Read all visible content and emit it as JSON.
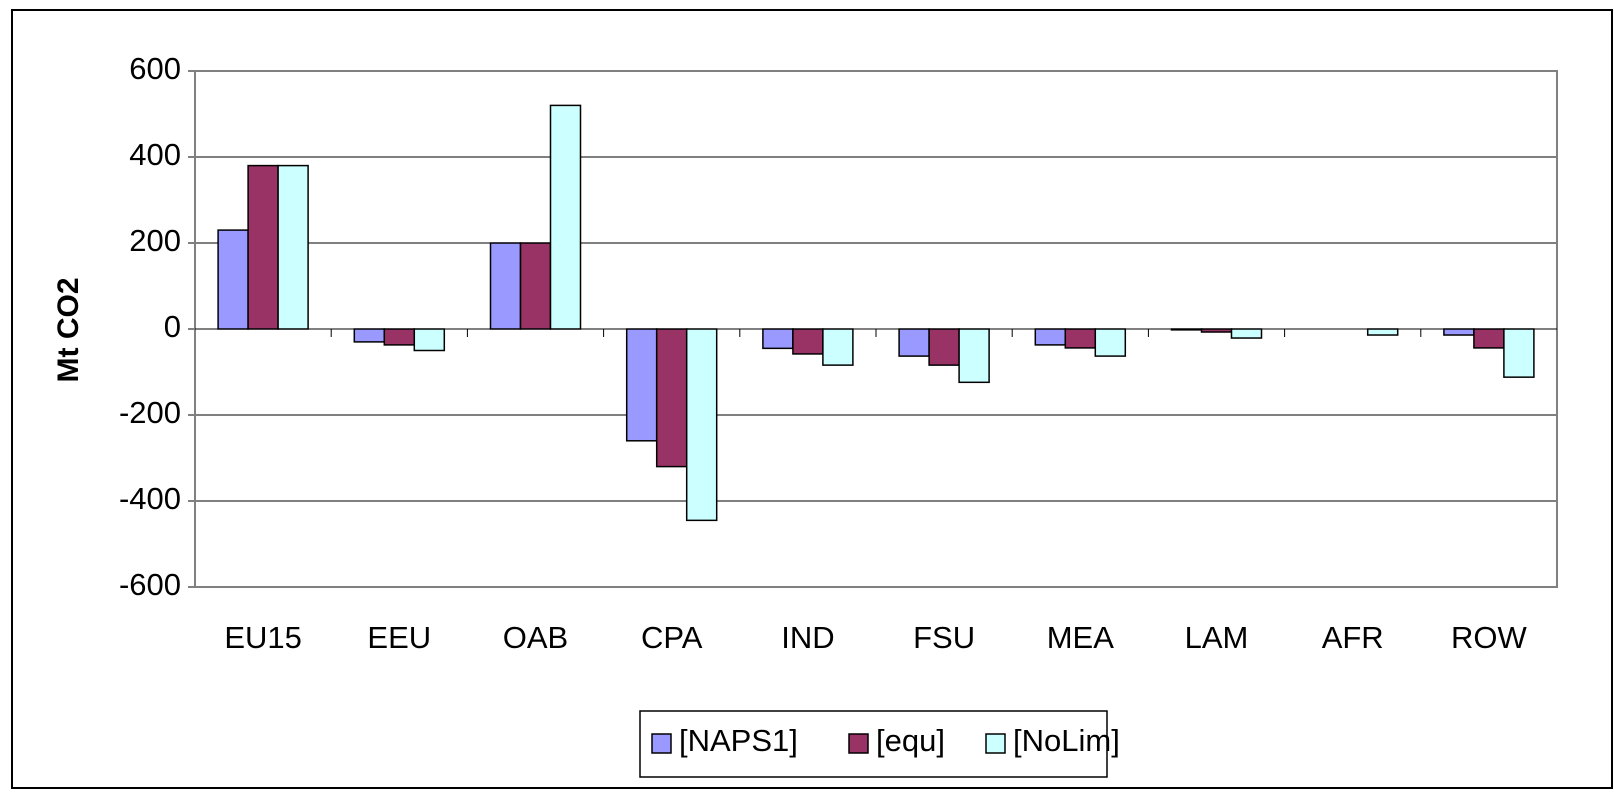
{
  "chart_data": {
    "type": "bar",
    "y_label": "Mt CO2",
    "categories": [
      "EU15",
      "EEU",
      "OAB",
      "CPA",
      "IND",
      "FSU",
      "MEA",
      "LAM",
      "AFR",
      "ROW"
    ],
    "series": [
      {
        "name": "[NAPS1]",
        "color": "#9999ff",
        "values": [
          230,
          -30,
          200,
          -260,
          -45,
          -63,
          -37,
          -2,
          0,
          -14
        ]
      },
      {
        "name": "[equ]",
        "color": "#993366",
        "values": [
          380,
          -37,
          200,
          -320,
          -58,
          -84,
          -44,
          -7,
          0,
          -44
        ]
      },
      {
        "name": "[NoLim]",
        "color": "#ccffff",
        "values": [
          380,
          -50,
          520,
          -445,
          -84,
          -124,
          -63,
          -21,
          -14,
          -112
        ]
      }
    ],
    "ylim": [
      -600,
      600
    ],
    "yticks": [
      -600,
      -400,
      -200,
      0,
      200,
      400,
      600
    ],
    "grid": true,
    "legend": "bottom"
  }
}
